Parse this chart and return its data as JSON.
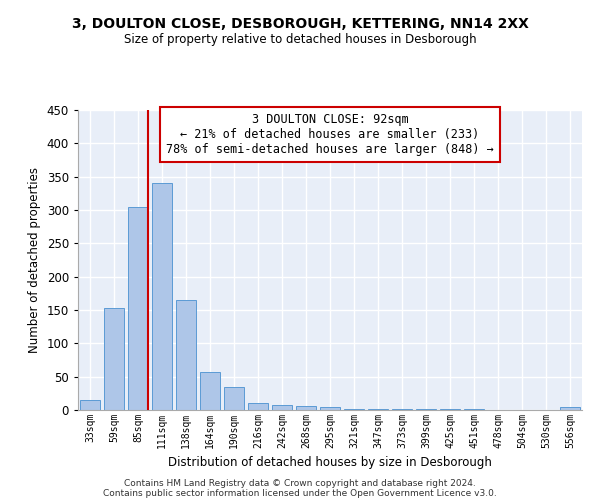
{
  "title": "3, DOULTON CLOSE, DESBOROUGH, KETTERING, NN14 2XX",
  "subtitle": "Size of property relative to detached houses in Desborough",
  "xlabel": "Distribution of detached houses by size in Desborough",
  "ylabel": "Number of detached properties",
  "bar_color": "#aec6e8",
  "bar_edgecolor": "#5b9bd5",
  "background_color": "#e8eef8",
  "grid_color": "#ffffff",
  "categories": [
    "33sqm",
    "59sqm",
    "85sqm",
    "111sqm",
    "138sqm",
    "164sqm",
    "190sqm",
    "216sqm",
    "242sqm",
    "268sqm",
    "295sqm",
    "321sqm",
    "347sqm",
    "373sqm",
    "399sqm",
    "425sqm",
    "451sqm",
    "478sqm",
    "504sqm",
    "530sqm",
    "556sqm"
  ],
  "values": [
    15,
    153,
    305,
    340,
    165,
    57,
    35,
    10,
    8,
    6,
    4,
    2,
    2,
    2,
    1,
    1,
    1,
    0,
    0,
    0,
    4
  ],
  "ylim": [
    0,
    450
  ],
  "yticks": [
    0,
    50,
    100,
    150,
    200,
    250,
    300,
    350,
    400,
    450
  ],
  "property_sqm": 92,
  "annotation_line1": "3 DOULTON CLOSE: 92sqm",
  "annotation_line2": "← 21% of detached houses are smaller (233)",
  "annotation_line3": "78% of semi-detached houses are larger (848) →",
  "annotation_box_color": "#ffffff",
  "annotation_box_edgecolor": "#cc0000",
  "vertical_line_color": "#cc0000",
  "footer1": "Contains HM Land Registry data © Crown copyright and database right 2024.",
  "footer2": "Contains public sector information licensed under the Open Government Licence v3.0."
}
